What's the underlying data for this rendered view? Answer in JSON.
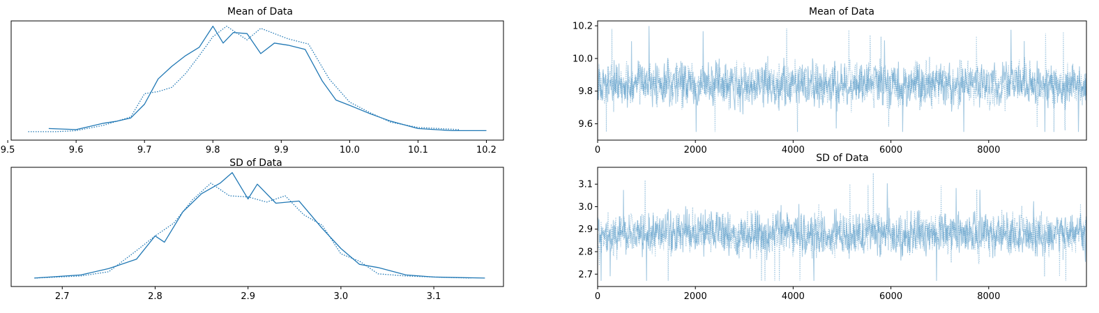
{
  "chart_data": [
    {
      "type": "line",
      "title": "Mean of Data",
      "xlabel": "",
      "ylabel": "",
      "xlim": [
        9.505,
        10.225
      ],
      "ylim": [
        -0.08,
        1.05
      ],
      "xticks": [
        9.5,
        9.6,
        9.7,
        9.8,
        9.9,
        10.0,
        10.1,
        10.2
      ],
      "xtick_labels": [
        "9.5",
        "9.6",
        "9.7",
        "9.8",
        "9.9",
        "10.0",
        "10.1",
        "10.2"
      ],
      "yticks": [],
      "series": [
        {
          "style": "solid",
          "color": "#1f77b4",
          "x": [
            9.56,
            9.6,
            9.64,
            9.66,
            9.68,
            9.7,
            9.72,
            9.74,
            9.76,
            9.78,
            9.8,
            9.815,
            9.83,
            9.85,
            9.87,
            9.89,
            9.91,
            9.935,
            9.96,
            9.98,
            10.0,
            10.03,
            10.06,
            10.1,
            10.15,
            10.2
          ],
          "y": [
            0.03,
            0.02,
            0.08,
            0.1,
            0.13,
            0.26,
            0.5,
            0.62,
            0.72,
            0.8,
            1.0,
            0.84,
            0.94,
            0.93,
            0.74,
            0.84,
            0.82,
            0.78,
            0.48,
            0.3,
            0.25,
            0.17,
            0.1,
            0.03,
            0.01,
            0.01
          ]
        },
        {
          "style": "dotted",
          "color": "#1f77b4",
          "x": [
            9.53,
            9.57,
            9.6,
            9.64,
            9.68,
            9.7,
            9.72,
            9.74,
            9.76,
            9.78,
            9.8,
            9.82,
            9.85,
            9.87,
            9.89,
            9.91,
            9.94,
            9.97,
            10.0,
            10.03,
            10.06,
            10.1,
            10.16
          ],
          "y": [
            0.0,
            0.0,
            0.01,
            0.06,
            0.14,
            0.36,
            0.38,
            0.42,
            0.55,
            0.72,
            0.9,
            1.0,
            0.87,
            0.98,
            0.93,
            0.88,
            0.83,
            0.5,
            0.28,
            0.18,
            0.09,
            0.04,
            0.02
          ]
        }
      ]
    },
    {
      "type": "line",
      "title": "Mean of Data",
      "xlabel": "",
      "ylabel": "",
      "xlim": [
        0,
        10000
      ],
      "ylim": [
        9.5,
        10.23
      ],
      "xticks": [
        0,
        2000,
        4000,
        6000,
        8000
      ],
      "xtick_labels": [
        "0",
        "2000",
        "4000",
        "6000",
        "8000"
      ],
      "yticks": [
        9.6,
        9.8,
        10.0,
        10.2
      ],
      "ytick_labels": [
        "9.6",
        "9.8",
        "10.0",
        "10.2"
      ],
      "trace": {
        "chains": 2,
        "draws": 10000,
        "center": 9.84,
        "spread": 0.09,
        "low": 9.55,
        "high": 10.2,
        "color": "#1f77b4",
        "alpha": 0.4
      }
    },
    {
      "type": "line",
      "title": "SD of Data",
      "xlabel": "",
      "ylabel": "",
      "xlim": [
        2.645,
        3.175
      ],
      "ylim": [
        -0.08,
        1.05
      ],
      "xticks": [
        2.7,
        2.8,
        2.9,
        3.0,
        3.1
      ],
      "xtick_labels": [
        "2.7",
        "2.8",
        "2.9",
        "3.0",
        "3.1"
      ],
      "yticks": [],
      "series": [
        {
          "style": "solid",
          "color": "#1f77b4",
          "x": [
            2.67,
            2.72,
            2.75,
            2.78,
            2.8,
            2.81,
            2.83,
            2.85,
            2.87,
            2.883,
            2.9,
            2.91,
            2.93,
            2.955,
            2.98,
            3.0,
            3.02,
            3.04,
            3.07,
            3.1,
            3.155
          ],
          "y": [
            0.0,
            0.03,
            0.09,
            0.18,
            0.4,
            0.34,
            0.63,
            0.8,
            0.9,
            1.0,
            0.75,
            0.89,
            0.71,
            0.73,
            0.47,
            0.28,
            0.13,
            0.1,
            0.03,
            0.01,
            0.0
          ]
        },
        {
          "style": "dotted",
          "color": "#1f77b4",
          "x": [
            2.67,
            2.72,
            2.75,
            2.78,
            2.8,
            2.82,
            2.84,
            2.86,
            2.88,
            2.9,
            2.92,
            2.94,
            2.96,
            2.98,
            3.0,
            3.02,
            3.04,
            3.07,
            3.1,
            3.14
          ],
          "y": [
            0.0,
            0.02,
            0.06,
            0.26,
            0.4,
            0.52,
            0.74,
            0.9,
            0.78,
            0.77,
            0.72,
            0.78,
            0.6,
            0.5,
            0.23,
            0.16,
            0.04,
            0.02,
            0.01,
            0.0
          ]
        }
      ]
    },
    {
      "type": "line",
      "title": "SD of Data",
      "xlabel": "",
      "ylabel": "",
      "xlim": [
        0,
        10000
      ],
      "ylim": [
        2.645,
        3.175
      ],
      "xticks": [
        0,
        2000,
        4000,
        6000,
        8000
      ],
      "xtick_labels": [
        "0",
        "2000",
        "4000",
        "6000",
        "8000"
      ],
      "yticks": [
        2.7,
        2.8,
        2.9,
        3.0,
        3.1
      ],
      "ytick_labels": [
        "2.7",
        "2.8",
        "2.9",
        "3.0",
        "3.1"
      ],
      "trace": {
        "chains": 2,
        "draws": 10000,
        "center": 2.88,
        "spread": 0.065,
        "low": 2.67,
        "high": 3.15,
        "color": "#1f77b4",
        "alpha": 0.4
      }
    }
  ]
}
